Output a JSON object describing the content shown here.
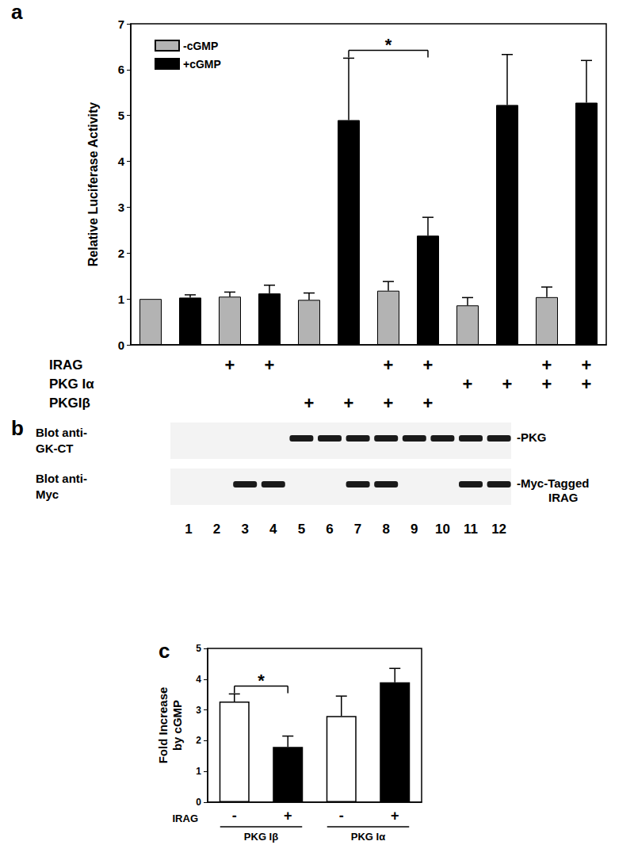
{
  "chart_data": [
    {
      "type": "bar",
      "label": "a",
      "categories": [
        null,
        null,
        null,
        null,
        null,
        null,
        null,
        null,
        null,
        null,
        null,
        null
      ],
      "tick_labels": "y",
      "y_label": "Relative Luciferase Activity",
      "ylim": [
        0,
        7
      ],
      "yticks": [
        0,
        1,
        2,
        3,
        4,
        5,
        6,
        7
      ],
      "grid": false,
      "legend": "upper left",
      "series": [
        {
          "name": "-cGMP",
          "color": "#b3b3b3",
          "values": [
            1.0,
            null,
            1.05,
            null,
            0.98,
            null,
            1.18,
            null,
            0.86,
            null,
            1.04,
            null
          ],
          "errors": [
            null,
            null,
            0.1,
            null,
            0.15,
            null,
            0.2,
            null,
            0.17,
            null,
            0.22,
            null
          ]
        },
        {
          "name": "+cGMP",
          "color": "#000000",
          "values": [
            null,
            1.03,
            null,
            1.12,
            null,
            4.9,
            null,
            2.38,
            null,
            5.23,
            null,
            5.28
          ],
          "errors": [
            null,
            0.06,
            null,
            0.18,
            null,
            1.35,
            null,
            0.4,
            null,
            1.1,
            null,
            0.92
          ]
        }
      ],
      "conditions": {
        "mark": "+",
        "rows": [
          {
            "label": "IRAG",
            "present": [
              false,
              false,
              true,
              true,
              false,
              false,
              true,
              true,
              false,
              false,
              true,
              true
            ]
          },
          {
            "label": "PKG Iα",
            "present": [
              false,
              false,
              false,
              false,
              false,
              false,
              false,
              false,
              true,
              true,
              true,
              true
            ]
          },
          {
            "label": "PKGIβ",
            "present": [
              false,
              false,
              false,
              false,
              true,
              true,
              true,
              true,
              false,
              false,
              false,
              false
            ]
          }
        ]
      },
      "significance": [
        {
          "between": [
            5,
            7
          ],
          "label": "*"
        }
      ]
    },
    {
      "type": "bar",
      "label": "c",
      "categories": [
        "-",
        "+",
        "-",
        "+"
      ],
      "row_label": "IRAG",
      "groups": [
        {
          "label": "PKG Iβ",
          "between": [
            0,
            1
          ]
        },
        {
          "label": "PKG Iα",
          "between": [
            2,
            3
          ]
        }
      ],
      "y_label": "Fold Increase\nby cGMP",
      "ylim": [
        0,
        5
      ],
      "yticks": [
        0,
        1,
        2,
        3,
        4,
        5
      ],
      "grid": false,
      "colors": [
        "#ffffff",
        "#000000",
        "#ffffff",
        "#000000"
      ],
      "values": [
        3.27,
        1.8,
        2.8,
        3.9
      ],
      "errors": [
        0.25,
        0.35,
        0.65,
        0.45
      ],
      "significance": [
        {
          "between": [
            0,
            1
          ],
          "label": "*"
        }
      ]
    }
  ],
  "blot": {
    "label": "b",
    "lanes": [
      "1",
      "2",
      "3",
      "4",
      "5",
      "6",
      "7",
      "8",
      "9",
      "10",
      "11",
      "12"
    ],
    "rows": [
      {
        "antibody": [
          "Blot anti-",
          "GK-CT"
        ],
        "target": [
          "-PKG"
        ],
        "bands": [
          false,
          false,
          false,
          false,
          true,
          true,
          true,
          true,
          true,
          true,
          true,
          true
        ]
      },
      {
        "antibody": [
          "Blot anti-",
          "Myc"
        ],
        "target": [
          "-Myc-Tagged",
          "IRAG"
        ],
        "bands": [
          false,
          false,
          true,
          true,
          false,
          false,
          true,
          true,
          false,
          false,
          true,
          true
        ]
      }
    ]
  }
}
